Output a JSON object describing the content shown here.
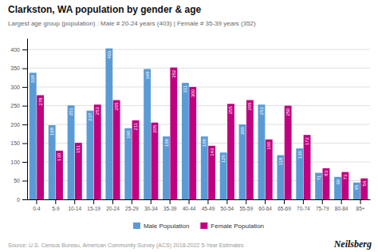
{
  "chart_data": {
    "type": "bar",
    "title": "Clarkston, WA population by gender & age",
    "subtitle": "Largest age group (population) : Male # 20-24 years (403) | Female # 35-39 years (352)",
    "source": "Source: U.S. Census Bureau, American Community Survey (ACS) 2018-2022 5-Year Estimates",
    "annotations": [
      "Neilsberg"
    ],
    "categories": [
      "0-4",
      "5-9",
      "10-14",
      "15-19",
      "20-24",
      "25-29",
      "30-34",
      "35-39",
      "40-44",
      "45-49",
      "50-54",
      "55-59",
      "60-64",
      "65-69",
      "70-74",
      "75-79",
      "80-84",
      "85+"
    ],
    "series": [
      {
        "name": "Male Population",
        "color": "#5B9BD5",
        "values": [
          338,
          198,
          251,
          237,
          403,
          190,
          348,
          168,
          311,
          168,
          125,
          200,
          253,
          118,
          136,
          71,
          60,
          45
        ]
      },
      {
        "name": "Female Population",
        "color": "#C00080",
        "values": [
          278,
          130,
          151,
          253,
          265,
          211,
          205,
          352,
          300,
          143,
          255,
          265,
          160,
          250,
          172,
          83,
          73,
          56
        ]
      }
    ],
    "ylim": [
      0,
      430
    ],
    "yticks": [
      0,
      50,
      100,
      150,
      200,
      250,
      300,
      350,
      400
    ],
    "grid": true,
    "legend": "bottom",
    "data_labels": true
  }
}
